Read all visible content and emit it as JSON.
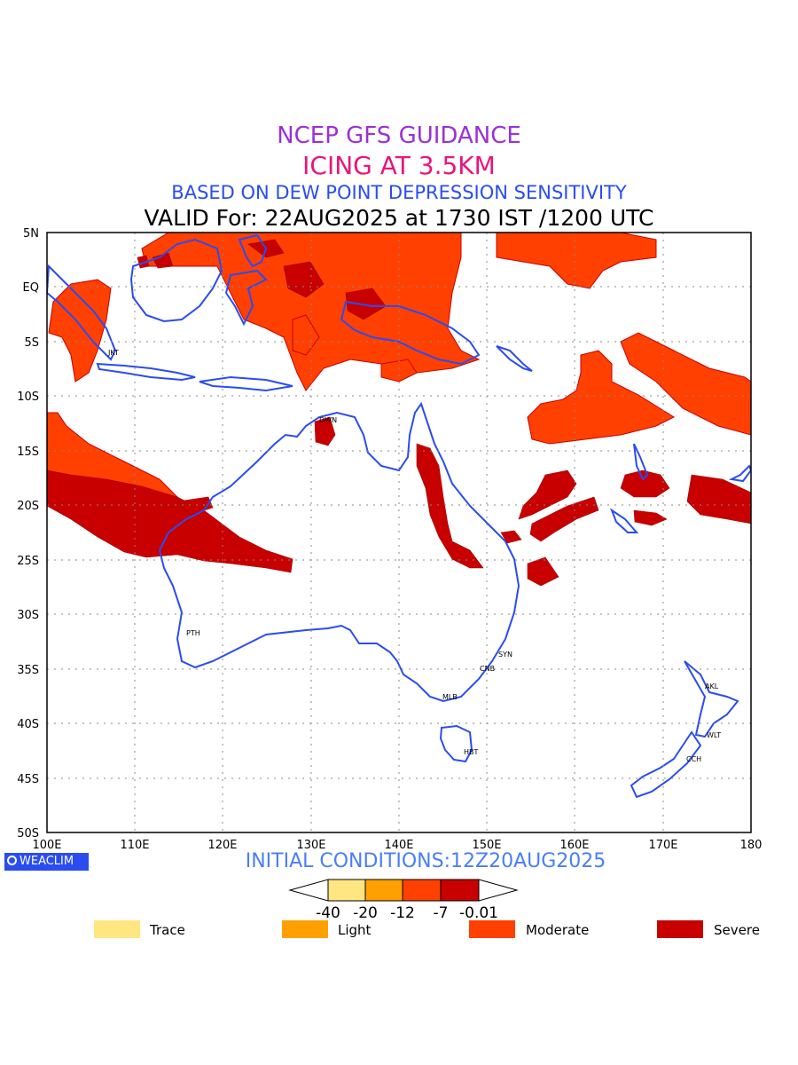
{
  "titles": {
    "line1": "NCEP GFS GUIDANCE",
    "line2": "ICING AT 3.5KM",
    "line3": "BASED ON DEW POINT DEPRESSION SENSITIVITY",
    "line4": "VALID For: 22AUG2025 at 1730 IST /1200 UTC"
  },
  "axes": {
    "x_ticks": [
      "100E",
      "110E",
      "120E",
      "130E",
      "140E",
      "150E",
      "160E",
      "170E",
      "180"
    ],
    "y_ticks": [
      "5N",
      "EQ",
      "5S",
      "10S",
      "15S",
      "20S",
      "25S",
      "30S",
      "35S",
      "40S",
      "45S",
      "50S"
    ],
    "lon_range": [
      100,
      180
    ],
    "lat_range": [
      -50,
      5
    ],
    "grid": true
  },
  "cities": [
    "JKT",
    "DWN",
    "PTH",
    "SYN",
    "CNB",
    "MLB",
    "HBT",
    "AKL",
    "WLT",
    "CCH"
  ],
  "init_conditions": "INITIAL CONDITIONS:12Z20AUG2025",
  "logo": "WEACLIM",
  "colorbar": {
    "levels": [
      "-40",
      "-20",
      "-12",
      "-7",
      "-0.01"
    ],
    "colors": [
      "#ffe680",
      "#ffa000",
      "#ff4000",
      "#c80000"
    ]
  },
  "legend": [
    {
      "label": "Trace",
      "color": "#ffe680"
    },
    {
      "label": "Light",
      "color": "#ffa000"
    },
    {
      "label": "Moderate",
      "color": "#ff4000"
    },
    {
      "label": "Severe",
      "color": "#c80000"
    }
  ],
  "colors": {
    "coast": "#2a4cf0",
    "moderate": "#ff4000",
    "severe": "#c80000"
  }
}
